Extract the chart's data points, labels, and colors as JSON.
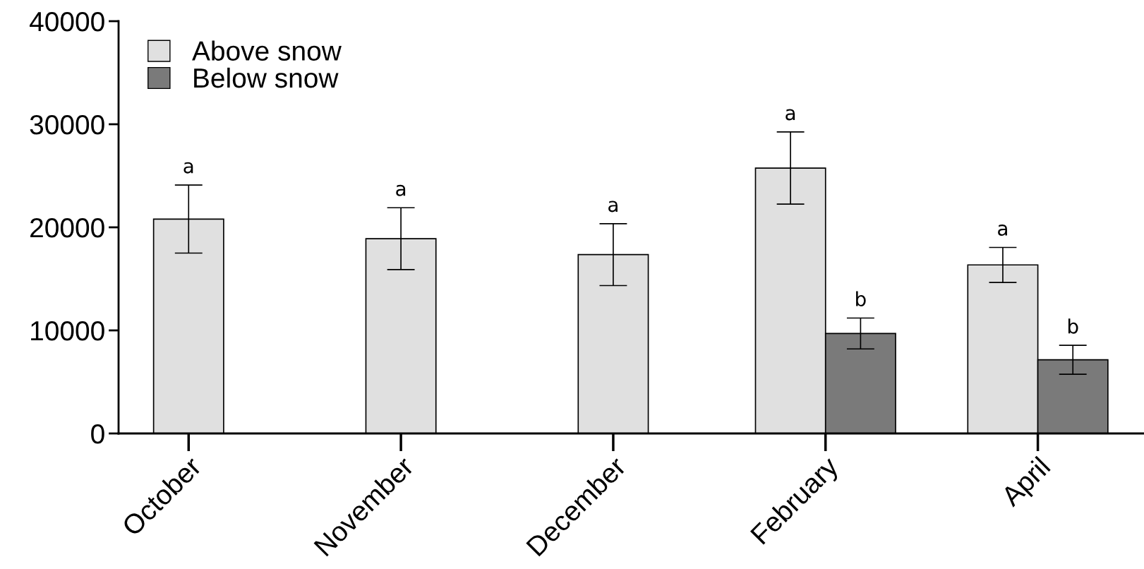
{
  "chart_data": {
    "type": "bar",
    "categories": [
      "October",
      "November",
      "December",
      "February",
      "April"
    ],
    "series": [
      {
        "name": "Above snow",
        "color": "#e0e0e0",
        "values": [
          20800,
          18900,
          17350,
          25750,
          16350
        ],
        "errors": [
          3300,
          3000,
          3000,
          3500,
          1700
        ],
        "value_labels": [
          "a",
          "a",
          "a",
          "a",
          "a"
        ]
      },
      {
        "name": "Below snow",
        "color": "#7a7a7a",
        "values": [
          null,
          null,
          null,
          9700,
          7150
        ],
        "errors": [
          null,
          null,
          null,
          1500,
          1400
        ],
        "value_labels": [
          null,
          null,
          null,
          "b",
          "b"
        ]
      }
    ],
    "ylim": [
      0,
      40000
    ],
    "yticks": [
      0,
      10000,
      20000,
      30000,
      40000
    ],
    "legend": "top left",
    "grid": false
  }
}
